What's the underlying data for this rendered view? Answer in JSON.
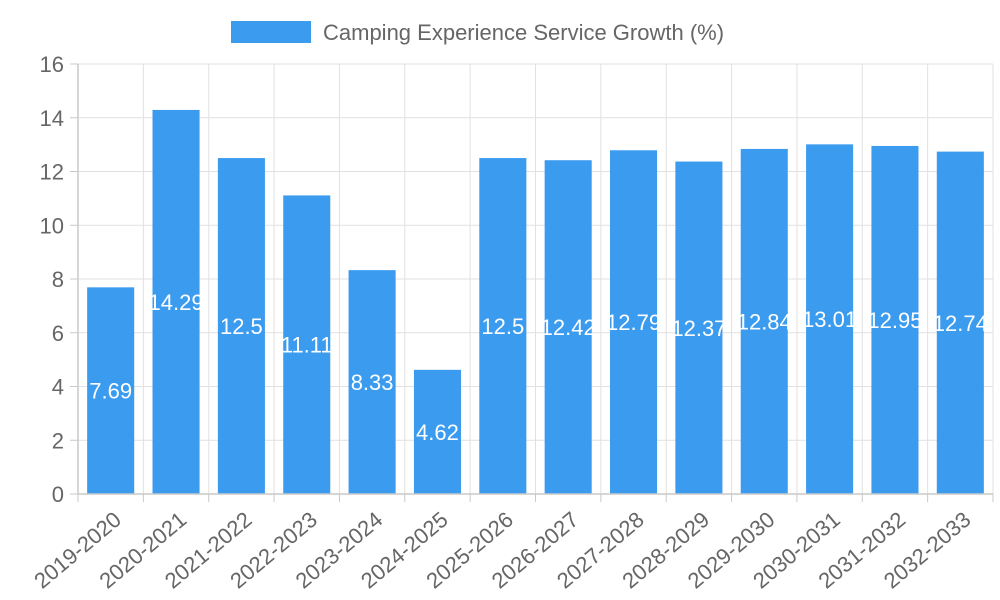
{
  "chart_data": {
    "type": "bar",
    "title": "",
    "legend": {
      "label": "Camping Experience Service Growth (%)",
      "position": "top-center"
    },
    "xlabel": "",
    "ylabel": "",
    "categories": [
      "2019-2020",
      "2020-2021",
      "2021-2022",
      "2022-2023",
      "2023-2024",
      "2024-2025",
      "2025-2026",
      "2026-2027",
      "2027-2028",
      "2028-2029",
      "2029-2030",
      "2030-2031",
      "2031-2032",
      "2032-2033"
    ],
    "series": [
      {
        "name": "Camping Experience Service Growth (%)",
        "values": [
          7.69,
          14.29,
          12.5,
          11.11,
          8.33,
          4.62,
          12.5,
          12.42,
          12.79,
          12.37,
          12.84,
          13.01,
          12.95,
          12.74
        ]
      }
    ],
    "data_labels": [
      "7.69",
      "14.29",
      "12.5",
      "11.11",
      "8.33",
      "4.62",
      "12.5",
      "12.42",
      "12.79",
      "12.37",
      "12.84",
      "13.01",
      "12.95",
      "12.74"
    ],
    "ylim": [
      0,
      16
    ],
    "yticks": [
      0,
      2,
      4,
      6,
      8,
      10,
      12,
      14,
      16
    ],
    "grid": true,
    "colors": {
      "bar": "#3a9bef",
      "grid": "#e1e1e1",
      "axis": "#c9c9c9",
      "text": "#666666",
      "label": "#ffffff"
    }
  }
}
